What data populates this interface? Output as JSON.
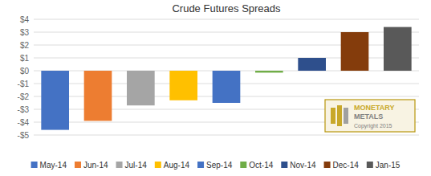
{
  "chart_data": {
    "type": "bar",
    "title": "Crude Futures Spreads",
    "categories": [
      "May-14",
      "Jun-14",
      "Jul-14",
      "Aug-14",
      "Sep-14",
      "Oct-14",
      "Nov-14",
      "Dec-14",
      "Jan-15"
    ],
    "values": [
      -4.6,
      -3.9,
      -2.7,
      -2.3,
      -2.5,
      -0.15,
      1.0,
      3.0,
      3.4
    ],
    "colors": [
      "#4472C4",
      "#ED7D31",
      "#A5A5A5",
      "#FFC000",
      "#4472C4",
      "#70AD47",
      "#2E4F8C",
      "#843C0C",
      "#595959"
    ],
    "ylim": [
      -5,
      4
    ],
    "yticks": [
      {
        "value": -5,
        "label": "-$5"
      },
      {
        "value": -4,
        "label": "-$4"
      },
      {
        "value": -3,
        "label": "-$3"
      },
      {
        "value": -2,
        "label": "-$2"
      },
      {
        "value": -1,
        "label": "-$1"
      },
      {
        "value": 0,
        "label": "$0"
      },
      {
        "value": 1,
        "label": "$1"
      },
      {
        "value": 2,
        "label": "$2"
      },
      {
        "value": 3,
        "label": "$3"
      },
      {
        "value": 4,
        "label": "$4"
      }
    ],
    "grid": true,
    "legend": "bottom",
    "annotations": [
      "MONETARY",
      "METALS",
      "Copyright 2015"
    ]
  }
}
